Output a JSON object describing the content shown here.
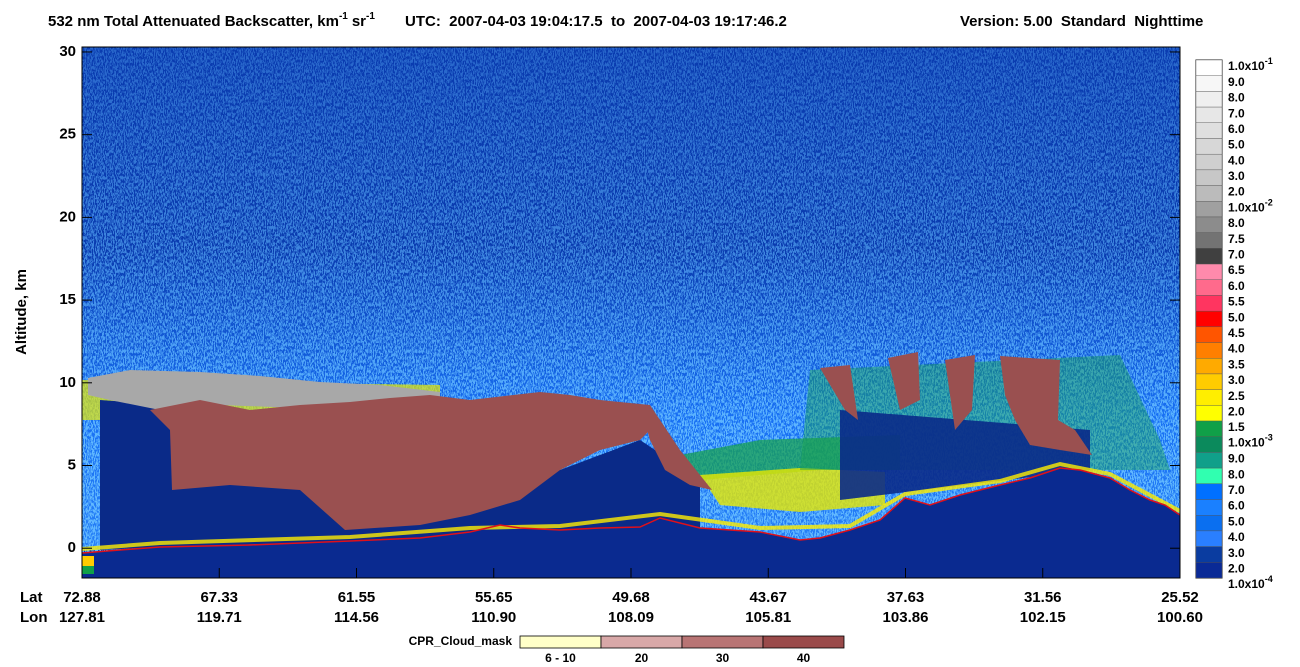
{
  "chart_data": {
    "type": "curtain",
    "title": "532 nm Total Attenuated Backscatter, km",
    "title_exp": "-1",
    "title_unit2": "sr",
    "title_exp2": "-1",
    "utc": "UTC:  2007-04-03 19:04:17.5  to  2007-04-03 19:17:46.2",
    "version": "Version: 5.00  Standard  Nighttime",
    "ylabel": "Altitude, km",
    "ylim": [
      -1.8,
      30.3
    ],
    "yticks": [
      0,
      5,
      10,
      15,
      20,
      25,
      30
    ],
    "x_row_labels": [
      "Lat",
      "Lon"
    ],
    "x_lat": [
      "72.88",
      "67.33",
      "61.55",
      "55.65",
      "49.68",
      "43.67",
      "37.63",
      "31.56",
      "25.52"
    ],
    "x_lon": [
      "127.81",
      "119.71",
      "114.56",
      "110.90",
      "108.09",
      "105.81",
      "103.86",
      "102.15",
      "100.60"
    ],
    "colorbar": {
      "labels": [
        {
          "text": "1.0x10",
          "exp": "-1"
        },
        "9.0",
        "8.0",
        "7.0",
        "6.0",
        "5.0",
        "4.0",
        "3.0",
        "2.0",
        {
          "text": "1.0x10",
          "exp": "-2"
        },
        "8.0",
        "7.5",
        "7.0",
        "6.5",
        "6.0",
        "5.5",
        "5.0",
        "4.5",
        "4.0",
        "3.5",
        "3.0",
        "2.5",
        "2.0",
        "1.5",
        {
          "text": "1.0x10",
          "exp": "-3"
        },
        "9.0",
        "8.0",
        "7.0",
        "6.0",
        "5.0",
        "4.0",
        "3.0",
        "2.0",
        {
          "text": "1.0x10",
          "exp": "-4"
        }
      ],
      "colors": [
        "#ffffff",
        "#f7f7f7",
        "#efefef",
        "#e7e7e7",
        "#dfdfdf",
        "#d7d7d7",
        "#cfcfcf",
        "#c7c7c7",
        "#bbbbbb",
        "#a0a0a0",
        "#8c8c8c",
        "#737373",
        "#404040",
        "#ff8aac",
        "#ff6a8c",
        "#ff3560",
        "#ff0000",
        "#ff5500",
        "#ff7f00",
        "#ffaa00",
        "#ffcc00",
        "#ffee00",
        "#ffff00",
        "#10a048",
        "#0b8a5c",
        "#10a08a",
        "#30ffb0",
        "#0070ff",
        "#1a80ff",
        "#0a6ff0",
        "#2a7fff",
        "#0a3ca0",
        "#0a2a96"
      ]
    },
    "legend": {
      "title": "CPR_Cloud_mask",
      "items": [
        {
          "label": "6 - 10",
          "color": "#ffffc8"
        },
        {
          "label": "20",
          "color": "#d8a8a8"
        },
        {
          "label": "30",
          "color": "#b87474"
        },
        {
          "label": "40",
          "color": "#9a4a4a"
        }
      ]
    }
  }
}
